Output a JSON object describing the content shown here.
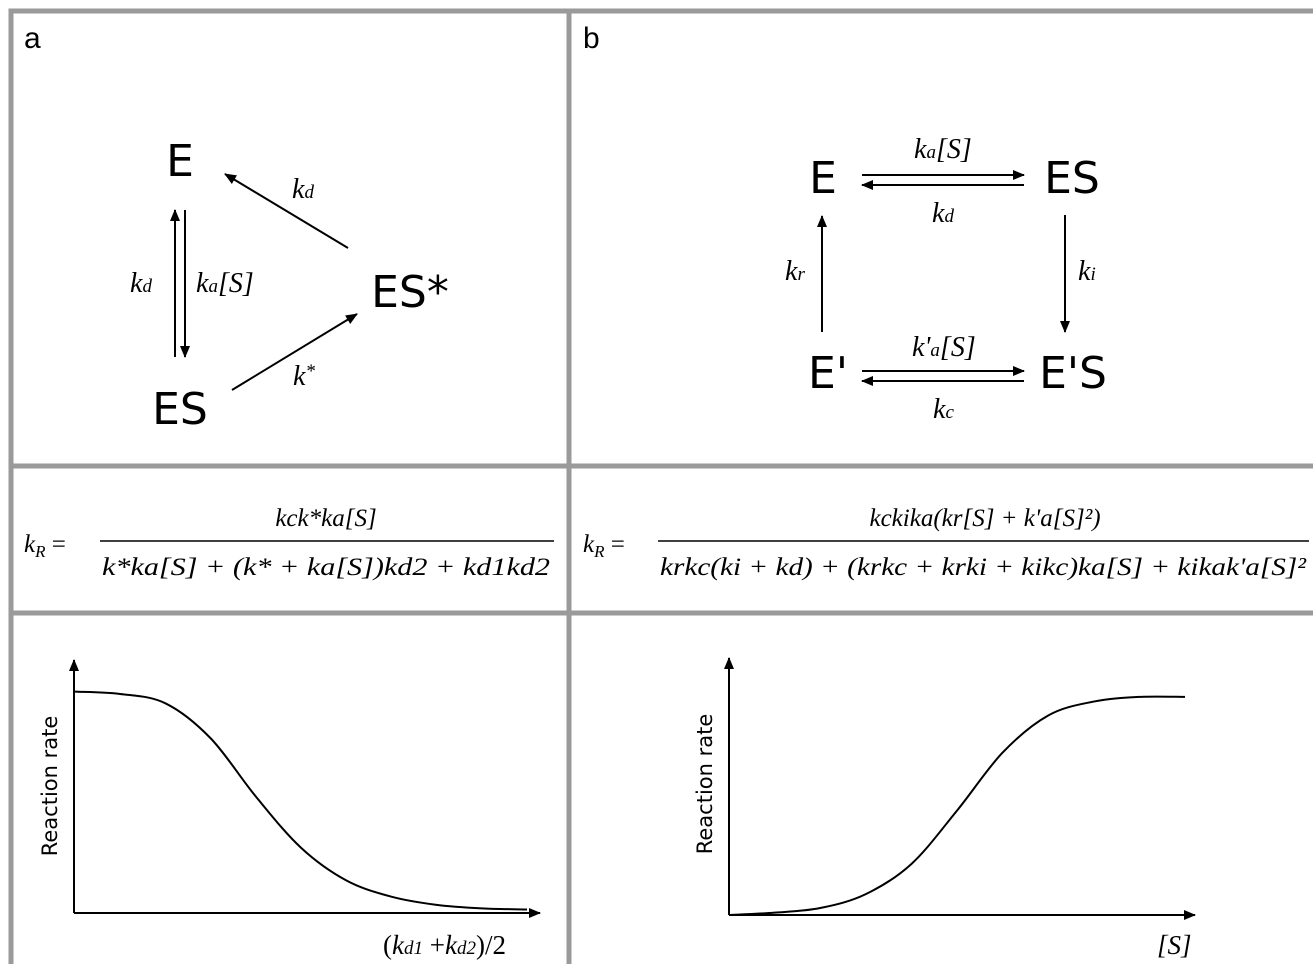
{
  "panels": {
    "a": {
      "letter": "a",
      "species": {
        "E": "E",
        "ES": "ES",
        "ESstar": "ES*"
      },
      "rates": {
        "kd_top": "d",
        "kd_left": "d",
        "ka": "a",
        "ka_bracket": "[S]",
        "kstar": "*"
      },
      "k": "k",
      "equation": {
        "lhs": "k",
        "lhs_sub": "R",
        "numerator": "kck*ka[S]",
        "denominator": "k*ka[S] + (k* + ka[S])kd2 + kd1kd2"
      },
      "plot": {
        "ylabel": "Reaction rate",
        "xlabel_k1": "d1",
        "xlabel_k2": "d2",
        "xlabel_tail": ")/2"
      }
    },
    "b": {
      "letter": "b",
      "species": {
        "E": "E",
        "ES": "ES",
        "Eprime": "E'",
        "EprimeS": "E'S"
      },
      "rates": {
        "ka": "a",
        "ka_bracket": "[S]",
        "kd": "d",
        "ki": "i",
        "kr": "r",
        "kprime": "k'",
        "kprime_sub": "a",
        "kprime_bracket": "[S]",
        "kc": "c"
      },
      "k": "k",
      "equation": {
        "lhs": "k",
        "lhs_sub": "R",
        "numerator": "kckika(kr[S] + k'a[S]²)",
        "denominator": "krkc(ki + kd) + (krkc + krki + kikc)ka[S] + kikak'a[S]²"
      },
      "plot": {
        "ylabel": "Reaction rate",
        "xlabel": "[S]"
      }
    }
  },
  "chart_data": [
    {
      "type": "line",
      "title": "",
      "xlabel": "(kd1 +kd2)/2",
      "ylabel": "Reaction rate",
      "series": [
        {
          "x": [
            0,
            0.1,
            0.2,
            0.3,
            0.4,
            0.5,
            0.6,
            0.7,
            0.8,
            0.9,
            1.0
          ],
          "y": [
            0.95,
            0.94,
            0.9,
            0.75,
            0.5,
            0.28,
            0.14,
            0.07,
            0.035,
            0.02,
            0.015
          ]
        }
      ]
    },
    {
      "type": "line",
      "title": "",
      "xlabel": "[S]",
      "ylabel": "Reaction rate",
      "series": [
        {
          "x": [
            0,
            0.1,
            0.2,
            0.3,
            0.4,
            0.5,
            0.6,
            0.7,
            0.8,
            0.9,
            1.0
          ],
          "y": [
            0.0,
            0.01,
            0.03,
            0.09,
            0.22,
            0.45,
            0.7,
            0.86,
            0.92,
            0.94,
            0.94
          ]
        }
      ]
    }
  ]
}
